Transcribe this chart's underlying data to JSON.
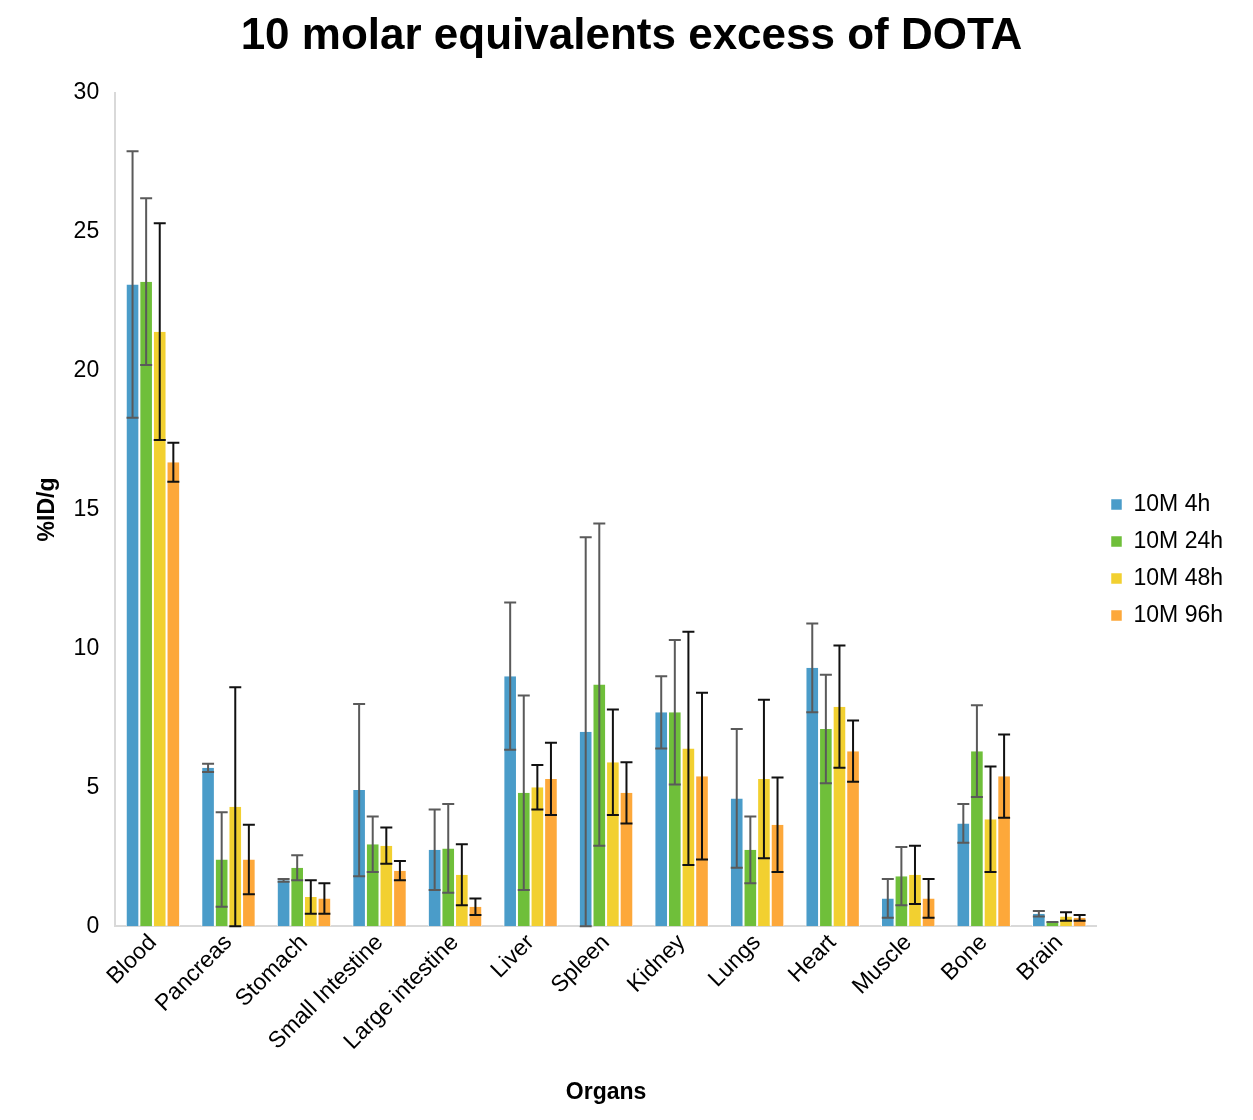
{
  "chart_data": {
    "type": "bar",
    "title": "10 molar equivalents excess of DOTA",
    "xlabel": "Organs",
    "ylabel": "%ID/g",
    "categories": [
      "Blood",
      "Pancreas",
      "Stomach",
      "Small Intestine",
      "Large intestine",
      "Liver",
      "Spleen",
      "Kidney",
      "Lungs",
      "Heart",
      "Muscle",
      "Bone",
      "Brain"
    ],
    "series": [
      {
        "name": "10M 4h",
        "color": "#4a9cc9",
        "values": [
          23.1,
          5.7,
          1.65,
          4.9,
          2.75,
          9.0,
          7.0,
          7.7,
          4.6,
          9.3,
          1.0,
          3.7,
          0.45
        ],
        "errors": [
          4.8,
          0.15,
          0.05,
          3.1,
          1.45,
          2.65,
          7.0,
          1.3,
          2.5,
          1.6,
          0.7,
          0.7,
          0.1
        ]
      },
      {
        "name": "10M 24h",
        "color": "#6fbf3a",
        "values": [
          23.2,
          2.4,
          2.1,
          2.95,
          2.8,
          4.8,
          8.7,
          7.7,
          2.75,
          7.1,
          1.8,
          6.3,
          0.15
        ],
        "errors": [
          3.0,
          1.7,
          0.45,
          1.0,
          1.6,
          3.5,
          5.8,
          2.6,
          1.2,
          1.95,
          1.05,
          1.65,
          0
        ]
      },
      {
        "name": "10M 48h",
        "color": "#f2d030",
        "values": [
          21.4,
          4.3,
          1.05,
          2.9,
          1.85,
          5.0,
          5.9,
          6.4,
          5.3,
          7.9,
          1.85,
          3.85,
          0.35
        ],
        "errors": [
          3.9,
          4.3,
          0.6,
          0.65,
          1.1,
          0.8,
          1.9,
          4.2,
          2.85,
          2.2,
          1.05,
          1.9,
          0.15
        ]
      },
      {
        "name": "10M 96h",
        "color": "#fda83a",
        "values": [
          16.7,
          2.4,
          1.0,
          2.0,
          0.7,
          5.3,
          4.8,
          5.4,
          3.65,
          6.3,
          1.0,
          5.4,
          0.3
        ],
        "errors": [
          0.7,
          1.25,
          0.55,
          0.35,
          0.3,
          1.3,
          1.1,
          3.0,
          1.7,
          1.1,
          0.7,
          1.5,
          0.1
        ]
      }
    ],
    "ylim": [
      0,
      30
    ],
    "yticks": [
      0,
      5,
      10,
      15,
      20,
      25,
      30
    ],
    "grid": false,
    "legend": "right"
  }
}
